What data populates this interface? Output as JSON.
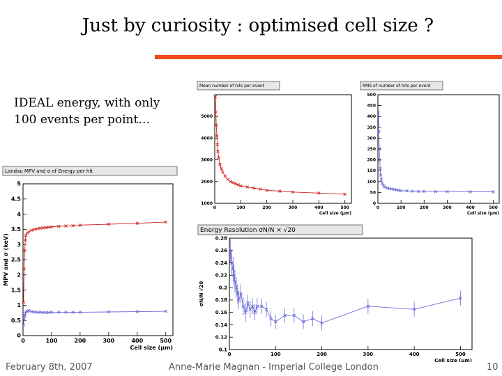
{
  "slide": {
    "title": "Just by curiosity : optimised cell size ?",
    "note_line1": "IDEAL energy, with only",
    "note_line2": "100 events per point…",
    "accent_color": "#f04a1a"
  },
  "footer": {
    "date": "February 8th, 2007",
    "author": "Anne-Marie Magnan - Imperial College London",
    "page": "10"
  },
  "chart_data": [
    {
      "type": "line",
      "title": "Landau MPV and σ of Energy per hit",
      "xlabel": "Cell size (μm)",
      "ylabel": "MPV and σ (keV)",
      "xlim": [
        0,
        525
      ],
      "ylim": [
        0,
        5
      ],
      "xticks": [
        0,
        100,
        200,
        300,
        400,
        500
      ],
      "yticks": [
        0,
        0.5,
        1,
        1.5,
        2,
        2.5,
        3,
        3.5,
        4,
        4.5,
        5
      ],
      "grid": false,
      "series": [
        {
          "color": "#d02020",
          "x": [
            2,
            4,
            6,
            8,
            10,
            15,
            20,
            30,
            40,
            50,
            60,
            70,
            80,
            90,
            100,
            125,
            150,
            175,
            200,
            300,
            400,
            500
          ],
          "y": [
            1.1,
            2.2,
            2.8,
            3.15,
            3.3,
            3.38,
            3.42,
            3.47,
            3.5,
            3.52,
            3.54,
            3.55,
            3.56,
            3.57,
            3.58,
            3.6,
            3.61,
            3.62,
            3.64,
            3.67,
            3.7,
            3.74
          ]
        },
        {
          "color": "#6a6ad8",
          "x": [
            2,
            4,
            6,
            8,
            10,
            15,
            20,
            30,
            40,
            50,
            60,
            70,
            80,
            90,
            100,
            125,
            150,
            175,
            200,
            300,
            400,
            500
          ],
          "y": [
            0.35,
            0.55,
            0.65,
            0.72,
            0.78,
            0.8,
            0.82,
            0.79,
            0.78,
            0.77,
            0.77,
            0.76,
            0.76,
            0.76,
            0.77,
            0.77,
            0.77,
            0.77,
            0.77,
            0.78,
            0.79,
            0.8
          ]
        }
      ]
    },
    {
      "type": "line",
      "title": "Mean number of hits per event",
      "xlabel": "Cell size (μm)",
      "ylabel": "",
      "xlim": [
        0,
        525
      ],
      "ylim": [
        1000,
        6000
      ],
      "xticks": [
        0,
        100,
        200,
        300,
        400,
        500
      ],
      "yticks": [
        1000,
        2000,
        3000,
        4000,
        5000
      ],
      "grid": false,
      "series": [
        {
          "color": "#d02020",
          "x": [
            2,
            4,
            6,
            8,
            10,
            12,
            15,
            20,
            25,
            30,
            40,
            50,
            60,
            70,
            80,
            90,
            100,
            125,
            150,
            175,
            200,
            250,
            300,
            400,
            500
          ],
          "y": [
            5900,
            5200,
            4600,
            4100,
            3700,
            3400,
            3100,
            2800,
            2600,
            2450,
            2250,
            2100,
            2000,
            1950,
            1900,
            1850,
            1800,
            1750,
            1700,
            1650,
            1600,
            1560,
            1520,
            1470,
            1420
          ]
        }
      ]
    },
    {
      "type": "line",
      "title": "RMS of number of hits per event",
      "xlabel": "Cell size (μm)",
      "ylabel": "",
      "xlim": [
        0,
        525
      ],
      "ylim": [
        0,
        500
      ],
      "xticks": [
        0,
        100,
        200,
        300,
        400,
        500
      ],
      "yticks": [
        0,
        50,
        100,
        150,
        200,
        250,
        300,
        350,
        400,
        450,
        500
      ],
      "grid": false,
      "series": [
        {
          "color": "#6a6ad8",
          "x": [
            2,
            4,
            6,
            8,
            10,
            12,
            15,
            20,
            25,
            30,
            40,
            50,
            60,
            70,
            80,
            90,
            100,
            125,
            150,
            175,
            200,
            250,
            300,
            400,
            500
          ],
          "y": [
            420,
            330,
            250,
            200,
            160,
            130,
            110,
            90,
            80,
            75,
            70,
            68,
            66,
            64,
            62,
            60,
            58,
            57,
            56,
            55,
            55,
            54,
            54,
            53,
            53
          ]
        }
      ]
    },
    {
      "type": "line",
      "title": "Energy Resolution σN/N × √20",
      "xlabel": "Cell size (μm)",
      "ylabel": "σN/N √20",
      "xlim": [
        0,
        525
      ],
      "ylim": [
        0.1,
        0.28
      ],
      "xticks": [
        0,
        100,
        200,
        300,
        400,
        500
      ],
      "yticks": [
        0.1,
        0.12,
        0.14,
        0.16,
        0.18,
        0.2,
        0.22,
        0.24,
        0.26,
        0.28
      ],
      "grid": false,
      "series": [
        {
          "color": "#6a6ad8",
          "x": [
            2,
            5,
            8,
            10,
            12,
            15,
            18,
            20,
            25,
            30,
            35,
            40,
            45,
            50,
            55,
            60,
            70,
            80,
            90,
            100,
            120,
            140,
            160,
            180,
            200,
            300,
            400,
            500
          ],
          "y": [
            0.26,
            0.24,
            0.23,
            0.22,
            0.21,
            0.2,
            0.19,
            0.18,
            0.19,
            0.17,
            0.16,
            0.175,
            0.165,
            0.17,
            0.16,
            0.17,
            0.17,
            0.165,
            0.15,
            0.145,
            0.155,
            0.155,
            0.145,
            0.15,
            0.143,
            0.17,
            0.165,
            0.183
          ],
          "err": [
            0.02,
            0.02,
            0.02,
            0.018,
            0.018,
            0.017,
            0.016,
            0.015,
            0.015,
            0.015,
            0.015,
            0.014,
            0.014,
            0.013,
            0.013,
            0.013,
            0.012,
            0.012,
            0.012,
            0.012,
            0.012,
            0.012,
            0.012,
            0.012,
            0.012,
            0.012,
            0.012,
            0.012
          ]
        }
      ]
    }
  ]
}
